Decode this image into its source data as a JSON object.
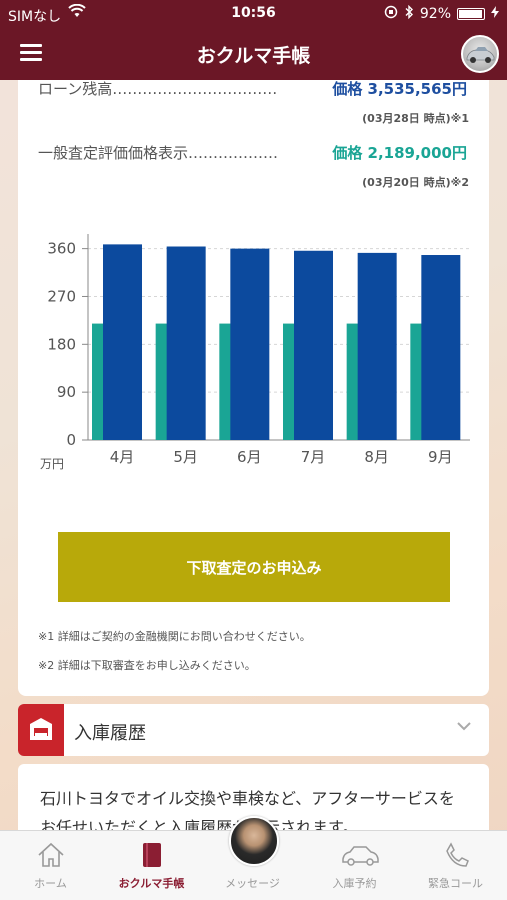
{
  "status_bar": {
    "carrier": "SIMなし",
    "time": "10:56",
    "battery": "92%"
  },
  "nav": {
    "title": "おクルマ手帳"
  },
  "loan": {
    "label": "ローン残高……………………………",
    "value": "価格 3,535,565円",
    "note": "(03月28日 時点)※1"
  },
  "appraisal": {
    "label": "一般査定評価価格表示………………",
    "value": "価格 2,189,000円",
    "note": "(03月20日 時点)※2"
  },
  "colors": {
    "loan": "#0c4a9e",
    "appraisal": "#1aa595",
    "brand": "#6b1726",
    "cta": "#b8a90a"
  },
  "chart_data": {
    "type": "bar",
    "categories": [
      "4月",
      "5月",
      "6月",
      "7月",
      "8月",
      "9月"
    ],
    "series": [
      {
        "values": [
          219,
          219,
          219,
          219,
          219,
          219
        ]
      },
      {
        "values": [
          368,
          364,
          360,
          356,
          352,
          348
        ]
      }
    ],
    "ylabel": "万円",
    "yticks": [
      0,
      90,
      180,
      270,
      360
    ],
    "ylim": [
      0,
      380
    ],
    "grid": true
  },
  "cta": {
    "label": "下取査定のお申込み"
  },
  "footnotes": [
    "※1 詳細はご契約の金融機関にお問い合わせください。",
    "※2 詳細は下取審査をお申し込みください。"
  ],
  "nyuko": {
    "title": "入庫履歴"
  },
  "info": {
    "text": "石川トヨタでオイル交換や車検など、アフターサービスをお任せいただくと入庫履歴が表示されます。"
  },
  "tabs": [
    {
      "label": "ホーム",
      "icon": "home-icon"
    },
    {
      "label": "おクルマ手帳",
      "icon": "notebook-icon"
    },
    {
      "label": "メッセージ",
      "icon": "advisor-avatar"
    },
    {
      "label": "入庫予約",
      "icon": "car-icon"
    },
    {
      "label": "緊急コール",
      "icon": "phone-icon"
    }
  ]
}
